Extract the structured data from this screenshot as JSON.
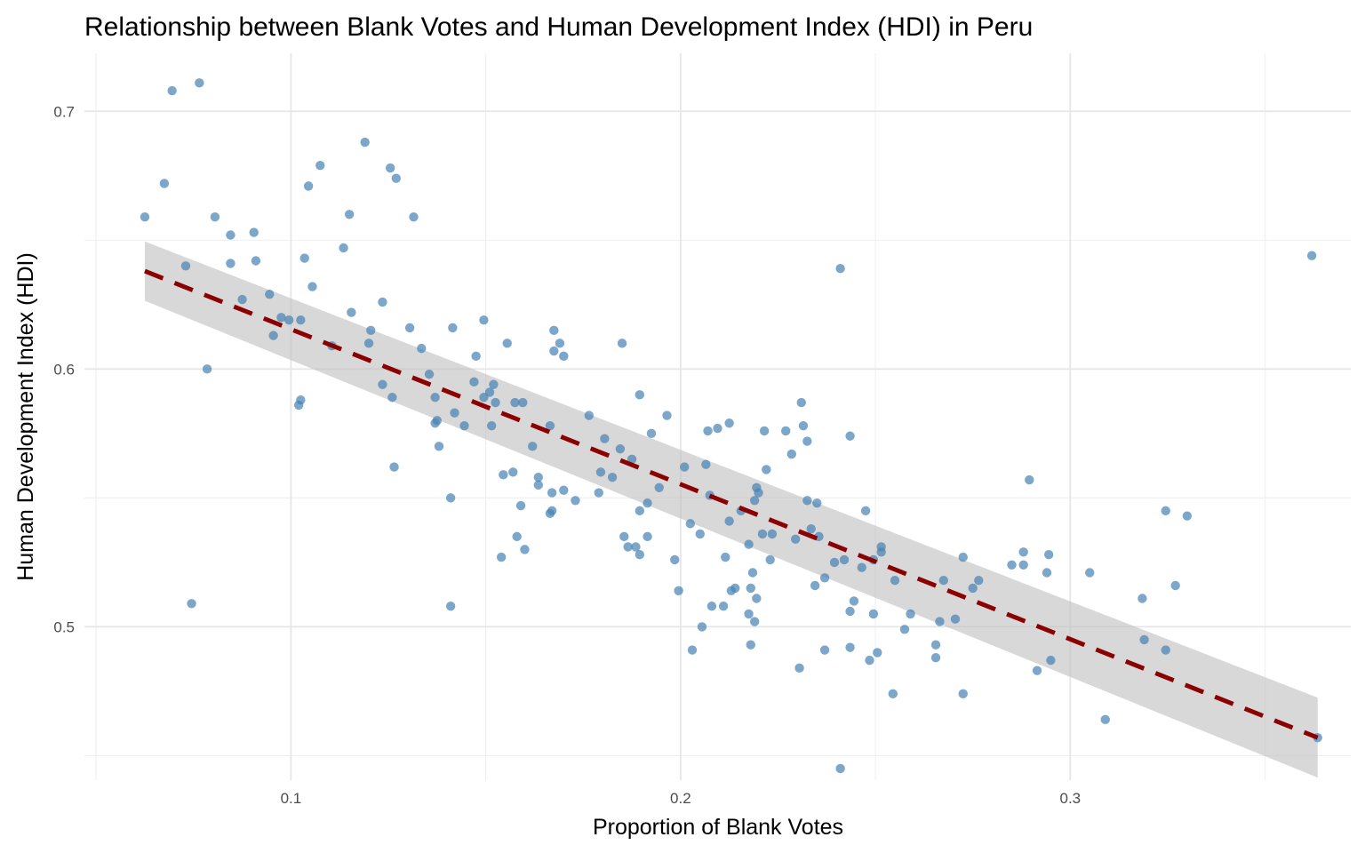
{
  "chart_data": {
    "type": "scatter",
    "title": "Relationship between Blank Votes and Human Development Index (HDI) in Peru",
    "xlabel": "Proportion of Blank Votes",
    "ylabel": "Human Development Index (HDI)",
    "xlim": [
      0.047,
      0.372
    ],
    "ylim": [
      0.4405,
      0.7225
    ],
    "x_ticks": [
      0.1,
      0.2,
      0.3
    ],
    "x_tick_labels": [
      "0.1",
      "0.2",
      "0.3"
    ],
    "y_ticks": [
      0.5,
      0.6,
      0.7
    ],
    "y_tick_labels": [
      "0.5",
      "0.6",
      "0.7"
    ],
    "grid": true,
    "colors": {
      "points": "#4682B4",
      "trend": "#8B0000",
      "ribbon": "#BEBEBE"
    },
    "trend_line": {
      "type": "linear fit",
      "x": [
        0.0625,
        0.3635
      ],
      "y": [
        0.638,
        0.457
      ],
      "ci_upper": [
        0.6495,
        0.4725
      ],
      "ci_lower": [
        0.6265,
        0.4415
      ]
    },
    "points": [
      [
        0.0625,
        0.659
      ],
      [
        0.0675,
        0.672
      ],
      [
        0.0695,
        0.708
      ],
      [
        0.073,
        0.64
      ],
      [
        0.0745,
        0.509
      ],
      [
        0.0765,
        0.711
      ],
      [
        0.0785,
        0.6
      ],
      [
        0.0805,
        0.659
      ],
      [
        0.0845,
        0.641
      ],
      [
        0.0845,
        0.652
      ],
      [
        0.0875,
        0.627
      ],
      [
        0.0905,
        0.653
      ],
      [
        0.091,
        0.642
      ],
      [
        0.0945,
        0.629
      ],
      [
        0.0955,
        0.613
      ],
      [
        0.0975,
        0.62
      ],
      [
        0.0995,
        0.619
      ],
      [
        0.102,
        0.586
      ],
      [
        0.1025,
        0.588
      ],
      [
        0.1025,
        0.619
      ],
      [
        0.1035,
        0.643
      ],
      [
        0.1045,
        0.671
      ],
      [
        0.1055,
        0.632
      ],
      [
        0.1075,
        0.679
      ],
      [
        0.1105,
        0.609
      ],
      [
        0.1135,
        0.647
      ],
      [
        0.115,
        0.66
      ],
      [
        0.1155,
        0.622
      ],
      [
        0.119,
        0.688
      ],
      [
        0.12,
        0.61
      ],
      [
        0.1205,
        0.615
      ],
      [
        0.1235,
        0.594
      ],
      [
        0.1235,
        0.626
      ],
      [
        0.1255,
        0.678
      ],
      [
        0.126,
        0.589
      ],
      [
        0.1265,
        0.562
      ],
      [
        0.127,
        0.674
      ],
      [
        0.1305,
        0.616
      ],
      [
        0.1315,
        0.659
      ],
      [
        0.1335,
        0.608
      ],
      [
        0.1355,
        0.598
      ],
      [
        0.137,
        0.579
      ],
      [
        0.137,
        0.589
      ],
      [
        0.1375,
        0.58
      ],
      [
        0.138,
        0.57
      ],
      [
        0.141,
        0.55
      ],
      [
        0.141,
        0.508
      ],
      [
        0.1415,
        0.616
      ],
      [
        0.142,
        0.583
      ],
      [
        0.1445,
        0.578
      ],
      [
        0.147,
        0.595
      ],
      [
        0.1475,
        0.605
      ],
      [
        0.1495,
        0.619
      ],
      [
        0.1495,
        0.589
      ],
      [
        0.151,
        0.591
      ],
      [
        0.1515,
        0.578
      ],
      [
        0.152,
        0.594
      ],
      [
        0.1525,
        0.587
      ],
      [
        0.154,
        0.527
      ],
      [
        0.1545,
        0.559
      ],
      [
        0.1555,
        0.61
      ],
      [
        0.157,
        0.56
      ],
      [
        0.1575,
        0.587
      ],
      [
        0.158,
        0.535
      ],
      [
        0.159,
        0.547
      ],
      [
        0.1595,
        0.587
      ],
      [
        0.16,
        0.53
      ],
      [
        0.162,
        0.57
      ],
      [
        0.1635,
        0.558
      ],
      [
        0.1635,
        0.555
      ],
      [
        0.1665,
        0.544
      ],
      [
        0.1665,
        0.578
      ],
      [
        0.167,
        0.552
      ],
      [
        0.167,
        0.545
      ],
      [
        0.1675,
        0.607
      ],
      [
        0.1675,
        0.615
      ],
      [
        0.169,
        0.61
      ],
      [
        0.17,
        0.553
      ],
      [
        0.17,
        0.605
      ],
      [
        0.173,
        0.549
      ],
      [
        0.1765,
        0.582
      ],
      [
        0.179,
        0.552
      ],
      [
        0.1795,
        0.56
      ],
      [
        0.1805,
        0.573
      ],
      [
        0.1825,
        0.558
      ],
      [
        0.1845,
        0.569
      ],
      [
        0.185,
        0.61
      ],
      [
        0.1855,
        0.535
      ],
      [
        0.1865,
        0.531
      ],
      [
        0.1875,
        0.565
      ],
      [
        0.1885,
        0.531
      ],
      [
        0.1895,
        0.528
      ],
      [
        0.1895,
        0.545
      ],
      [
        0.1895,
        0.59
      ],
      [
        0.1915,
        0.535
      ],
      [
        0.1915,
        0.548
      ],
      [
        0.1925,
        0.575
      ],
      [
        0.1945,
        0.554
      ],
      [
        0.1965,
        0.582
      ],
      [
        0.1985,
        0.526
      ],
      [
        0.1995,
        0.514
      ],
      [
        0.201,
        0.562
      ],
      [
        0.2025,
        0.54
      ],
      [
        0.203,
        0.491
      ],
      [
        0.205,
        0.536
      ],
      [
        0.2055,
        0.5
      ],
      [
        0.2065,
        0.563
      ],
      [
        0.207,
        0.576
      ],
      [
        0.2075,
        0.551
      ],
      [
        0.208,
        0.508
      ],
      [
        0.2095,
        0.577
      ],
      [
        0.211,
        0.508
      ],
      [
        0.2115,
        0.527
      ],
      [
        0.2125,
        0.579
      ],
      [
        0.2125,
        0.541
      ],
      [
        0.213,
        0.514
      ],
      [
        0.214,
        0.515
      ],
      [
        0.2155,
        0.545
      ],
      [
        0.2175,
        0.532
      ],
      [
        0.2175,
        0.505
      ],
      [
        0.218,
        0.493
      ],
      [
        0.218,
        0.515
      ],
      [
        0.2185,
        0.521
      ],
      [
        0.219,
        0.549
      ],
      [
        0.219,
        0.502
      ],
      [
        0.2195,
        0.511
      ],
      [
        0.2195,
        0.554
      ],
      [
        0.22,
        0.552
      ],
      [
        0.221,
        0.536
      ],
      [
        0.2215,
        0.576
      ],
      [
        0.222,
        0.561
      ],
      [
        0.223,
        0.526
      ],
      [
        0.2235,
        0.536
      ],
      [
        0.227,
        0.576
      ],
      [
        0.2285,
        0.567
      ],
      [
        0.2295,
        0.534
      ],
      [
        0.2305,
        0.484
      ],
      [
        0.231,
        0.587
      ],
      [
        0.2315,
        0.578
      ],
      [
        0.2325,
        0.572
      ],
      [
        0.2325,
        0.549
      ],
      [
        0.2335,
        0.538
      ],
      [
        0.2345,
        0.516
      ],
      [
        0.235,
        0.548
      ],
      [
        0.2355,
        0.535
      ],
      [
        0.237,
        0.519
      ],
      [
        0.237,
        0.491
      ],
      [
        0.2395,
        0.525
      ],
      [
        0.241,
        0.639
      ],
      [
        0.241,
        0.445
      ],
      [
        0.242,
        0.526
      ],
      [
        0.2435,
        0.506
      ],
      [
        0.2435,
        0.492
      ],
      [
        0.2435,
        0.574
      ],
      [
        0.2445,
        0.51
      ],
      [
        0.2465,
        0.523
      ],
      [
        0.2475,
        0.545
      ],
      [
        0.2485,
        0.487
      ],
      [
        0.2495,
        0.526
      ],
      [
        0.2495,
        0.505
      ],
      [
        0.2505,
        0.49
      ],
      [
        0.2515,
        0.531
      ],
      [
        0.2515,
        0.529
      ],
      [
        0.2545,
        0.474
      ],
      [
        0.255,
        0.518
      ],
      [
        0.2575,
        0.499
      ],
      [
        0.259,
        0.505
      ],
      [
        0.2655,
        0.488
      ],
      [
        0.2655,
        0.493
      ],
      [
        0.2665,
        0.502
      ],
      [
        0.2675,
        0.518
      ],
      [
        0.2705,
        0.503
      ],
      [
        0.2725,
        0.474
      ],
      [
        0.2725,
        0.527
      ],
      [
        0.275,
        0.515
      ],
      [
        0.2765,
        0.518
      ],
      [
        0.285,
        0.524
      ],
      [
        0.288,
        0.529
      ],
      [
        0.288,
        0.524
      ],
      [
        0.2895,
        0.557
      ],
      [
        0.2915,
        0.483
      ],
      [
        0.294,
        0.521
      ],
      [
        0.2945,
        0.528
      ],
      [
        0.295,
        0.487
      ],
      [
        0.305,
        0.521
      ],
      [
        0.309,
        0.464
      ],
      [
        0.3185,
        0.511
      ],
      [
        0.319,
        0.495
      ],
      [
        0.3245,
        0.545
      ],
      [
        0.3245,
        0.491
      ],
      [
        0.327,
        0.516
      ],
      [
        0.33,
        0.543
      ],
      [
        0.362,
        0.644
      ],
      [
        0.3635,
        0.457
      ]
    ]
  }
}
